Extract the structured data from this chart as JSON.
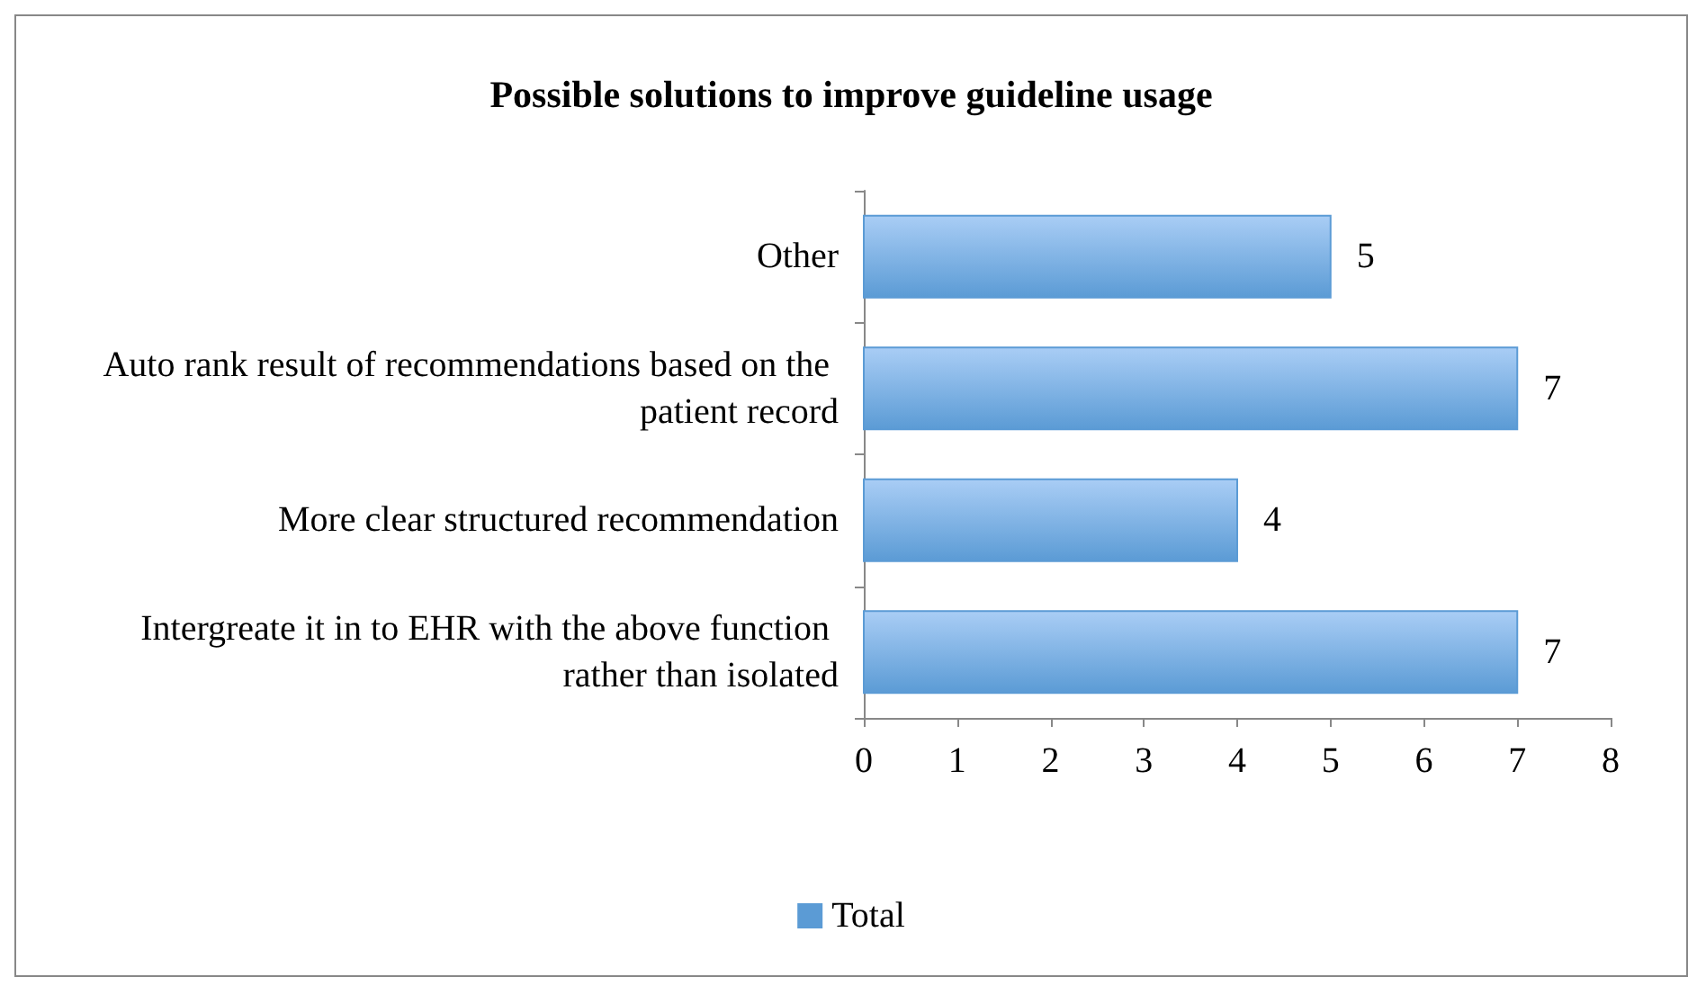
{
  "chart_data": {
    "type": "bar",
    "orientation": "horizontal",
    "title": "Possible solutions to improve guideline usage",
    "categories": [
      "Other",
      "Auto rank result of recommendations based on the patient record",
      "More clear structured recommendation",
      "Intergreate it in to EHR with the above function rather than isolated"
    ],
    "series": [
      {
        "name": "Total",
        "color": "#5b9bd5",
        "values": [
          5,
          7,
          4,
          7
        ]
      }
    ],
    "xlim": [
      0,
      8
    ],
    "xticks": [
      0,
      1,
      2,
      3,
      4,
      5,
      6,
      7,
      8
    ],
    "grid": false,
    "legend": "bottom",
    "data_labels": true
  }
}
